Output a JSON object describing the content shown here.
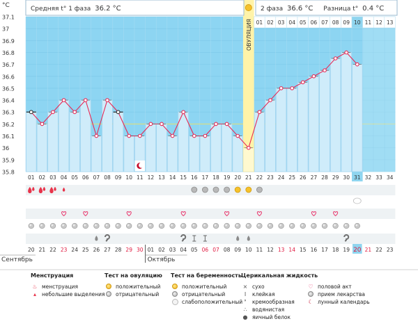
{
  "header": {
    "unit": "°C",
    "phase1_label": "Средняя t° 1 фаза",
    "phase1_value": "36.2 °C",
    "phase2_label": "2 фаза",
    "phase2_value": "36.6 °C",
    "diff_label": "Разница t°",
    "diff_value": "0.4 °C",
    "ovulation_label": "ОВУЛЯЦИЯ"
  },
  "colors": {
    "phase_bg": "#8dd5f2",
    "column_fill": "#cfecfa",
    "line": "#e62a57",
    "coverline": "#e8e070",
    "ovulation": "#fff3a8",
    "today": "#8fd5ef"
  },
  "chart_data": {
    "type": "line",
    "title": "",
    "xlabel": "",
    "ylabel": "°C",
    "ylim": [
      35.8,
      37.1
    ],
    "y_ticks": [
      "35.8",
      "35.9",
      "36",
      "36.1",
      "36.2",
      "36.3",
      "36.4",
      "36.5",
      "36.6",
      "36.7",
      "36.8",
      "36.9",
      "37",
      "37.1"
    ],
    "cycle_days": [
      "01",
      "02",
      "03",
      "04",
      "05",
      "06",
      "07",
      "08",
      "09",
      "10",
      "11",
      "12",
      "13",
      "14",
      "15",
      "16",
      "17",
      "18",
      "19",
      "20",
      "21",
      "22",
      "23",
      "24",
      "25",
      "26",
      "27",
      "28",
      "29",
      "30",
      "31",
      "32",
      "33",
      "34"
    ],
    "phase2_days": [
      "01",
      "02",
      "03",
      "04",
      "05",
      "06",
      "07",
      "08",
      "09",
      "10",
      "11",
      "12",
      "13"
    ],
    "series": [
      {
        "values": [
          36.3,
          36.2,
          36.3,
          36.4,
          36.3,
          36.4,
          36.1,
          36.4,
          36.3,
          36.1,
          36.1,
          36.2,
          36.2,
          36.1,
          36.3,
          36.1,
          36.1,
          36.2,
          36.2,
          36.1,
          36.0,
          36.3,
          36.4,
          36.5,
          36.5,
          36.55,
          36.6,
          36.65,
          36.75,
          36.8,
          36.7
        ]
      }
    ],
    "excluded_days": [
      1,
      9
    ],
    "coverline": 36.2,
    "ovulation_day": 21,
    "today_day": 31,
    "calendar_dates": [
      "20",
      "21",
      "22",
      "23",
      "24",
      "25",
      "26",
      "27",
      "28",
      "29",
      "30",
      "01",
      "02",
      "03",
      "04",
      "05",
      "06",
      "07",
      "08",
      "09",
      "10",
      "11",
      "12",
      "13",
      "14",
      "15",
      "16",
      "17",
      "18",
      "19",
      "20",
      "21",
      "22",
      "23"
    ],
    "red_dates_idx": [
      3,
      9,
      10,
      16,
      17,
      23,
      24,
      30,
      31
    ],
    "month_start": "Сентябрь",
    "month_next": "Октябрь",
    "month_boundary_idx": 11
  },
  "symbols": {
    "menstruation": [
      1,
      2,
      3
    ],
    "spotting": [
      4
    ],
    "moon_chart_day": 11,
    "ovu_positive": [
      20,
      21
    ],
    "ovu_negative": [
      16,
      17,
      18,
      19,
      22
    ],
    "hearts": [
      4,
      6,
      10,
      15,
      19,
      22,
      27,
      29
    ],
    "pill_day": 31,
    "pill_grey_days": [
      1,
      2,
      3,
      4,
      5,
      6,
      7,
      8,
      9,
      10,
      11,
      12,
      13,
      14,
      15,
      16,
      17,
      18,
      19,
      20,
      21,
      22,
      23,
      24,
      25,
      26,
      27,
      28,
      29,
      30,
      31
    ],
    "mucus_sticky": [
      16,
      17
    ],
    "mucus_creamy": [
      8,
      15,
      30
    ],
    "mucus_eggwhite": [
      7,
      20,
      21
    ]
  },
  "legend": {
    "menstruation": {
      "title": "Менструация",
      "items": [
        "менструация",
        "небольшие выделения"
      ]
    },
    "ovulation_test": {
      "title": "Тест на овуляцию",
      "items": [
        "положительный",
        "отрицательный"
      ]
    },
    "pregnancy_test": {
      "title": "Тест на беременность",
      "items": [
        "положительный",
        "отрицательный",
        "слабоположительный"
      ]
    },
    "cervical": {
      "title": "Церикальная жидкость",
      "items": [
        "сухо",
        "клейкая",
        "кремообразная",
        "водянистая",
        "яичный белок"
      ]
    },
    "other": {
      "items": [
        "половой акт",
        "прием лекарства",
        "лунный календарь"
      ]
    }
  }
}
